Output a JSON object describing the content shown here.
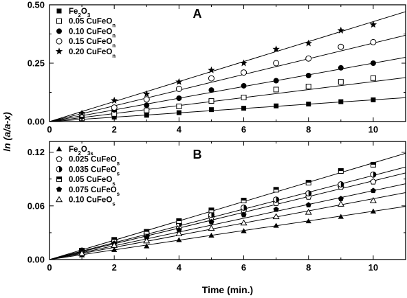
{
  "chart_data": [
    {
      "type": "scatter",
      "panel": "A",
      "title": "A",
      "xlim": [
        0,
        11
      ],
      "ylim": [
        0,
        0.5
      ],
      "xticks": [
        0,
        2,
        4,
        6,
        8,
        10
      ],
      "yticks": [
        "0.00",
        "0.25",
        "0.50"
      ],
      "legend": "top-left",
      "series": [
        {
          "name": "Fe2O3",
          "name_parts": [
            {
              "t": "Fe",
              "s": false
            },
            {
              "t": "2",
              "s": true
            },
            {
              "t": "O",
              "s": false
            },
            {
              "t": "3",
              "s": true
            }
          ],
          "marker": "filled-square",
          "slope": 0.0093,
          "x": [
            1,
            2,
            3,
            4,
            5,
            6,
            7,
            8,
            9,
            10
          ],
          "y": [
            0.012,
            0.019,
            0.027,
            0.038,
            0.051,
            0.057,
            0.067,
            0.075,
            0.085,
            0.093
          ]
        },
        {
          "name": "0.05 CuFeOn",
          "name_parts": [
            {
              "t": "0.05 CuFeO",
              "s": false
            },
            {
              "t": "n",
              "s": true
            }
          ],
          "marker": "open-square",
          "slope": 0.0171,
          "x": [
            1,
            2,
            3,
            4,
            5,
            6,
            7,
            8,
            9,
            10
          ],
          "y": [
            0.014,
            0.033,
            0.048,
            0.065,
            0.088,
            0.103,
            0.137,
            0.15,
            0.17,
            0.186
          ]
        },
        {
          "name": "0.10 CuFeOn",
          "name_parts": [
            {
              "t": "0.10 CuFeO",
              "s": false
            },
            {
              "t": "n",
              "s": true
            }
          ],
          "marker": "filled-circle",
          "slope": 0.025,
          "x": [
            1,
            2,
            3,
            4,
            5,
            6,
            7,
            8,
            9,
            10
          ],
          "y": [
            0.02,
            0.05,
            0.07,
            0.1,
            0.135,
            0.153,
            0.175,
            0.197,
            0.23,
            0.25
          ]
        },
        {
          "name": "0.15 CuFeOn",
          "name_parts": [
            {
              "t": "0.15 CuFeO",
              "s": false
            },
            {
              "t": "n",
              "s": true
            }
          ],
          "marker": "open-circle",
          "slope": 0.0336,
          "x": [
            1,
            2,
            3,
            4,
            5,
            6,
            7,
            8,
            9,
            10
          ],
          "y": [
            0.03,
            0.06,
            0.095,
            0.14,
            0.185,
            0.21,
            0.25,
            0.27,
            0.32,
            0.34
          ]
        },
        {
          "name": "0.20 CuFeOn",
          "name_parts": [
            {
              "t": "0.20 CuFeO",
              "s": false
            },
            {
              "t": "n",
              "s": true
            }
          ],
          "marker": "star",
          "slope": 0.0428,
          "x": [
            1,
            2,
            3,
            4,
            5,
            6,
            7,
            8,
            9,
            10
          ],
          "y": [
            0.035,
            0.09,
            0.118,
            0.17,
            0.22,
            0.25,
            0.31,
            0.335,
            0.39,
            0.415
          ]
        }
      ]
    },
    {
      "type": "scatter",
      "panel": "B",
      "title": "B",
      "xlim": [
        0,
        11
      ],
      "ylim": [
        0,
        0.132
      ],
      "xticks": [
        0,
        2,
        4,
        6,
        8,
        10
      ],
      "yticks": [
        "0.00",
        "0.06",
        "0.12"
      ],
      "legend": "top-left",
      "series": [
        {
          "name": "Fe2O3s",
          "name_parts": [
            {
              "t": "Fe",
              "s": false
            },
            {
              "t": "2",
              "s": true
            },
            {
              "t": "O",
              "s": false
            },
            {
              "t": "3s",
              "s": true
            }
          ],
          "marker": "filled-triangle",
          "slope": 0.0054,
          "x": [
            1,
            2,
            3,
            4,
            5,
            6,
            7,
            8,
            9,
            10
          ],
          "y": [
            0.005,
            0.011,
            0.015,
            0.022,
            0.027,
            0.032,
            0.038,
            0.043,
            0.048,
            0.054
          ]
        },
        {
          "name": "0.025 CuFeOs",
          "name_parts": [
            {
              "t": "0.025 CuFeO",
              "s": false
            },
            {
              "t": "s",
              "s": true
            }
          ],
          "marker": "open-pentagon",
          "slope": 0.0088,
          "x": [
            1,
            2,
            3,
            4,
            5,
            6,
            7,
            8,
            9,
            10
          ],
          "y": [
            0.009,
            0.019,
            0.026,
            0.035,
            0.047,
            0.055,
            0.063,
            0.07,
            0.081,
            0.087
          ]
        },
        {
          "name": "0.035 CuFeOs",
          "name_parts": [
            {
              "t": "0.035 CuFeO",
              "s": false
            },
            {
              "t": "s",
              "s": true
            }
          ],
          "marker": "half-circle",
          "slope": 0.0094,
          "x": [
            1,
            2,
            3,
            4,
            5,
            6,
            7,
            8,
            9,
            10
          ],
          "y": [
            0.01,
            0.021,
            0.029,
            0.04,
            0.05,
            0.058,
            0.067,
            0.074,
            0.084,
            0.095
          ]
        },
        {
          "name": "0.05 CuFeOs",
          "name_parts": [
            {
              "t": "0.05 CuFeO",
              "s": false
            },
            {
              "t": "s",
              "s": true
            }
          ],
          "marker": "half-square",
          "slope": 0.0108,
          "x": [
            1,
            2,
            3,
            4,
            5,
            6,
            7,
            8,
            9,
            10
          ],
          "y": [
            0.01,
            0.022,
            0.031,
            0.043,
            0.055,
            0.066,
            0.078,
            0.086,
            0.099,
            0.106
          ]
        },
        {
          "name": "0.075 CuFeOs",
          "name_parts": [
            {
              "t": "0.075 CuFeO",
              "s": false
            },
            {
              "t": "s",
              "s": true
            }
          ],
          "marker": "filled-pentagon",
          "slope": 0.0077,
          "x": [
            1,
            2,
            3,
            4,
            5,
            6,
            7,
            8,
            9,
            10
          ],
          "y": [
            0.008,
            0.018,
            0.025,
            0.033,
            0.042,
            0.05,
            0.056,
            0.061,
            0.068,
            0.077
          ]
        },
        {
          "name": "0.10 CuFeOs",
          "name_parts": [
            {
              "t": "0.10 CuFeO",
              "s": false
            },
            {
              "t": "s",
              "s": true
            }
          ],
          "marker": "open-triangle",
          "slope": 0.0068,
          "x": [
            1,
            2,
            3,
            4,
            5,
            6,
            7,
            8,
            9,
            10
          ],
          "y": [
            0.007,
            0.016,
            0.021,
            0.029,
            0.035,
            0.041,
            0.048,
            0.053,
            0.062,
            0.066
          ]
        }
      ]
    }
  ],
  "axes": {
    "xlabel": "Time (min.)",
    "ylabel": "ln (a/a-x)"
  }
}
